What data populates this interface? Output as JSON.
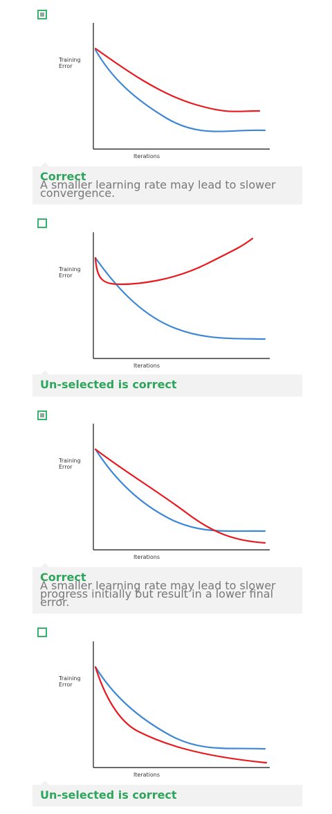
{
  "options": [
    {
      "checked": true,
      "chart": {
        "y_label": "Training Error",
        "x_label": "Iterations"
      },
      "feedback": {
        "status": "Correct",
        "explanation": "A smaller learning rate may lead to slower convergence."
      }
    },
    {
      "checked": false,
      "chart": {
        "y_label": "Training Error",
        "x_label": "Iterations"
      },
      "feedback": {
        "status": "Un-selected is correct"
      }
    },
    {
      "checked": true,
      "chart": {
        "y_label": "Training Error",
        "x_label": "Iterations"
      },
      "feedback": {
        "status": "Correct",
        "explanation": "A smaller learning rate may lead to slower progress initially but result in a lower final error."
      }
    },
    {
      "checked": false,
      "chart": {
        "y_label": "Training Error",
        "x_label": "Iterations"
      },
      "feedback": {
        "status": "Un-selected is correct"
      }
    }
  ]
}
